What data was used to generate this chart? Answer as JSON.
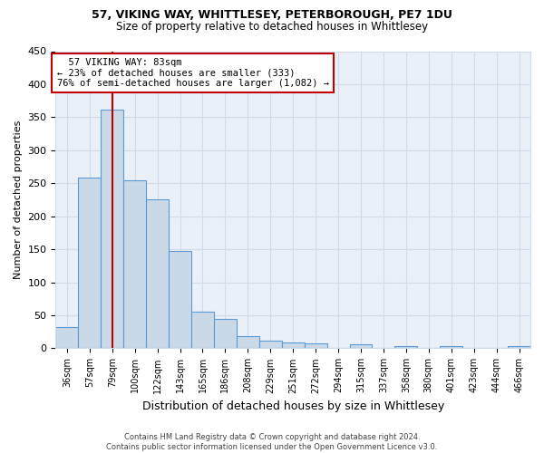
{
  "title1": "57, VIKING WAY, WHITTLESEY, PETERBOROUGH, PE7 1DU",
  "title2": "Size of property relative to detached houses in Whittlesey",
  "xlabel": "Distribution of detached houses by size in Whittlesey",
  "ylabel": "Number of detached properties",
  "footnote": "Contains HM Land Registry data © Crown copyright and database right 2024.\nContains public sector information licensed under the Open Government Licence v3.0.",
  "bar_labels": [
    "36sqm",
    "57sqm",
    "79sqm",
    "100sqm",
    "122sqm",
    "143sqm",
    "165sqm",
    "186sqm",
    "208sqm",
    "229sqm",
    "251sqm",
    "272sqm",
    "294sqm",
    "315sqm",
    "337sqm",
    "358sqm",
    "380sqm",
    "401sqm",
    "423sqm",
    "444sqm",
    "466sqm"
  ],
  "bar_values": [
    32,
    258,
    362,
    255,
    225,
    147,
    56,
    45,
    18,
    11,
    9,
    7,
    0,
    6,
    0,
    3,
    0,
    3,
    0,
    0,
    3
  ],
  "bar_color": "#c9d9e8",
  "bar_edge_color": "#5b9bd5",
  "grid_color": "#d0dce8",
  "bg_color": "#eaf0f8",
  "vline_x": 2.0,
  "vline_color": "#c00000",
  "annotation_text": "  57 VIKING WAY: 83sqm\n← 23% of detached houses are smaller (333)\n76% of semi-detached houses are larger (1,082) →",
  "annotation_box_color": "#c00000",
  "ylim": [
    0,
    450
  ],
  "yticks": [
    0,
    50,
    100,
    150,
    200,
    250,
    300,
    350,
    400,
    450
  ]
}
